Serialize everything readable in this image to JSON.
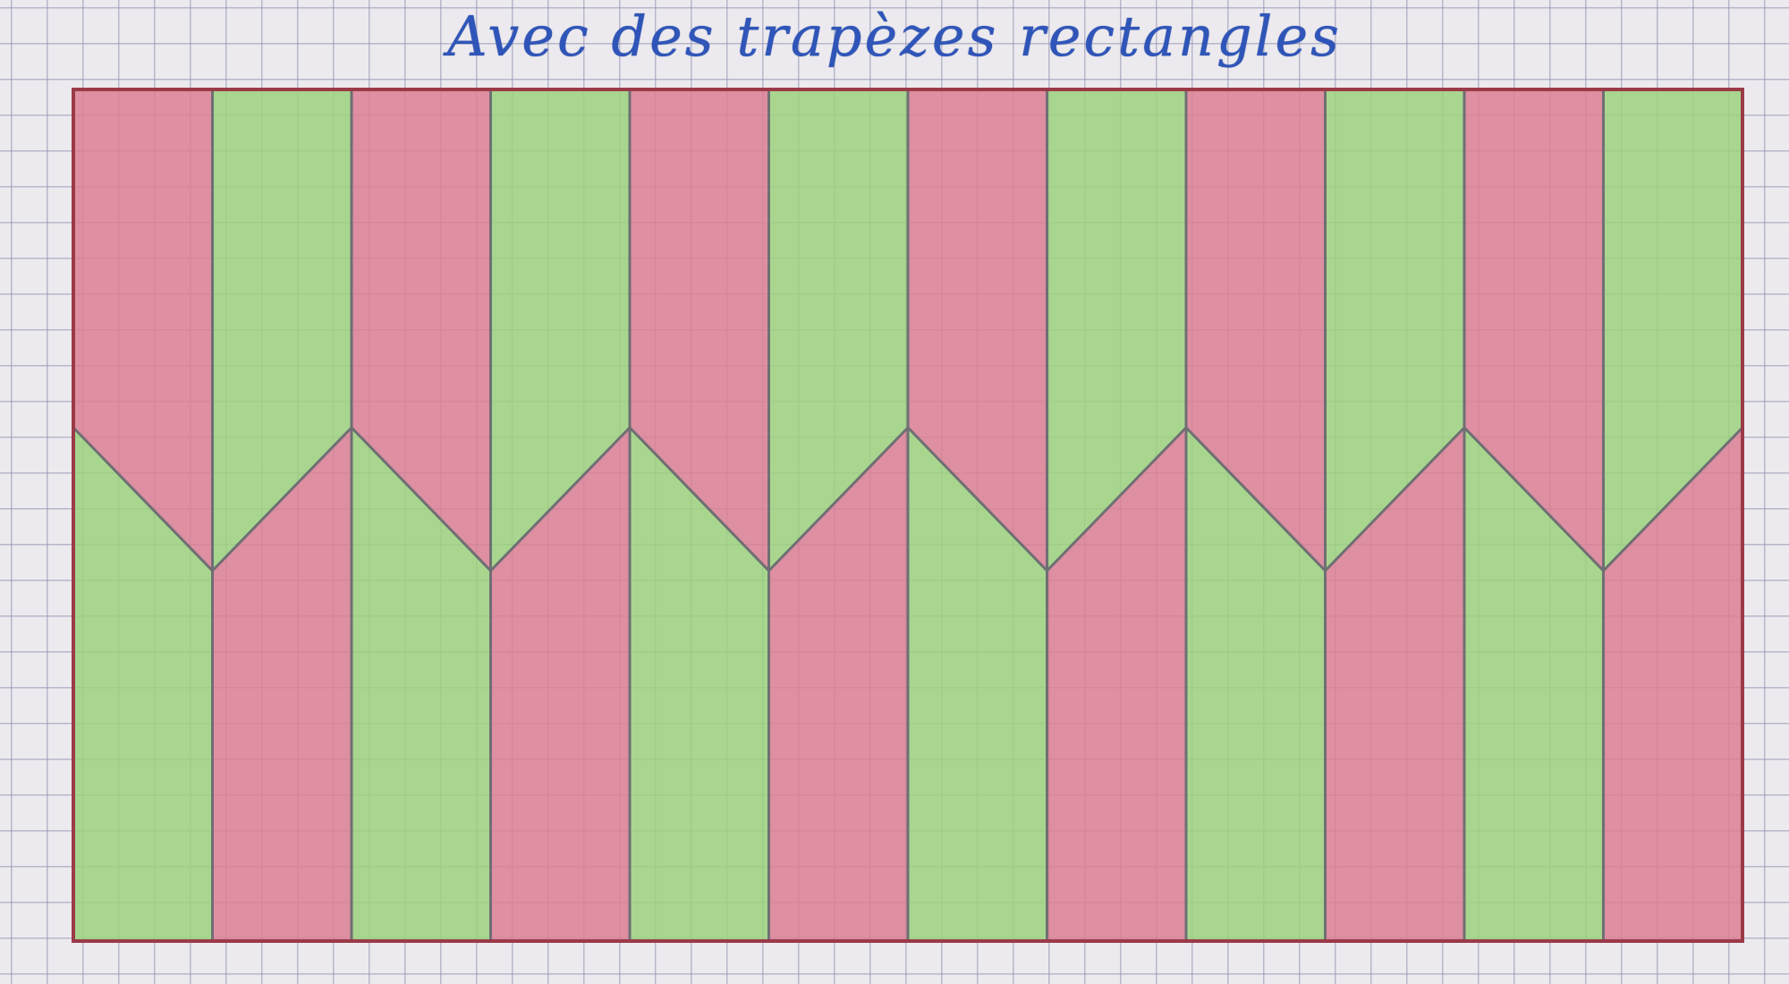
{
  "title": "Avec des trapèzes rectangles",
  "colors": {
    "red": "#dc7f93",
    "green": "#9cd27e",
    "pencil": "#6f6f73",
    "frame": "#9b3a48",
    "ink": "#2f55b8"
  },
  "pattern": {
    "columns": 12,
    "top_colors": [
      "red",
      "green",
      "red",
      "green",
      "red",
      "green",
      "red",
      "green",
      "red",
      "green",
      "red",
      "green"
    ],
    "bottom_colors": [
      "green",
      "red",
      "green",
      "red",
      "green",
      "red",
      "green",
      "red",
      "green",
      "red",
      "green",
      "red"
    ]
  }
}
